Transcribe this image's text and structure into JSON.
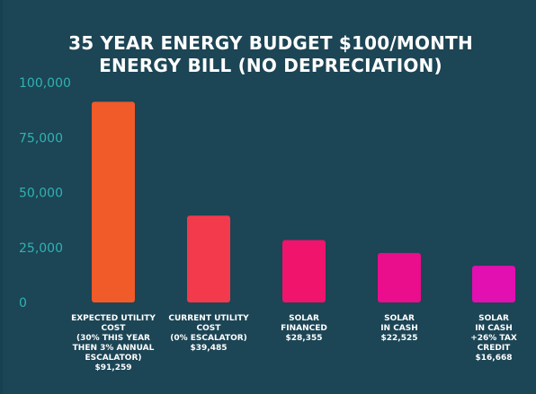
{
  "chart_data": {
    "type": "bar",
    "title": [
      "35 YEAR ENERGY BUDGET $100/MONTH",
      "ENERGY BILL (NO DEPRECIATION)"
    ],
    "xlabel": "",
    "ylabel": "",
    "ylim": [
      0,
      100000
    ],
    "yticks": [
      "0",
      "25,000",
      "50,000",
      "75,000",
      "100,000"
    ],
    "ytick_values": [
      0,
      25000,
      50000,
      75000,
      100000
    ],
    "grid": false,
    "categories": [
      [
        "EXPECTED UTILITY",
        "COST",
        "(30% THIS YEAR",
        "THEN 3% ANNUAL",
        "ESCALATOR)",
        "$91,259"
      ],
      [
        "CURRENT UTILITY",
        "COST",
        "(0% ESCALATOR)",
        "$39,485"
      ],
      [
        "SOLAR",
        "FINANCED",
        "$28,355"
      ],
      [
        "SOLAR",
        "IN CASH",
        "$22,525"
      ],
      [
        "SOLAR",
        "IN CASH",
        "+26% TAX",
        "CREDIT",
        "$16,668"
      ]
    ],
    "values": [
      91259,
      39485,
      28355,
      22525,
      16668
    ],
    "colors": [
      "#f15a29",
      "#f23a4c",
      "#f0146c",
      "#ea0d8c",
      "#e20fb1"
    ]
  },
  "colors": {
    "background": "#1c4555",
    "axis_text": "#2fb3b3",
    "title_text": "#ffffff"
  }
}
